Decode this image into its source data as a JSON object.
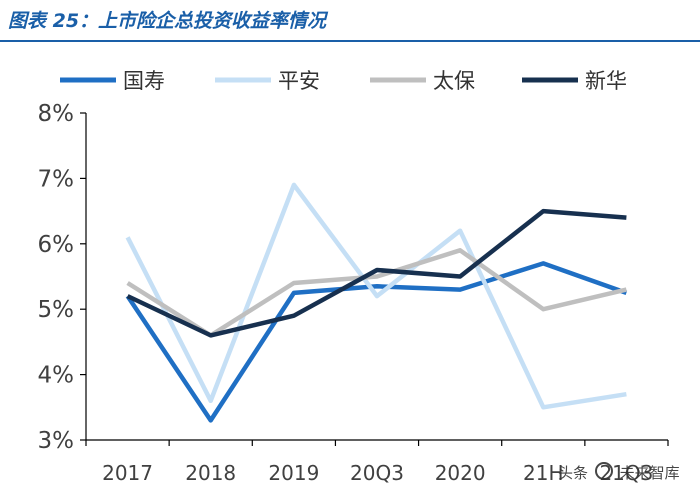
{
  "header": {
    "title": "图表 25：上市险企总投资收益率情况"
  },
  "watermark": {
    "prefix": "头条",
    "name": "未来智库"
  },
  "chart_data": {
    "type": "line",
    "title": "图表 25：上市险企总投资收益率情况",
    "xlabel": "",
    "ylabel": "",
    "categories": [
      "2017",
      "2018",
      "2019",
      "20Q3",
      "2020",
      "21H",
      "21Q3"
    ],
    "ylim": [
      3,
      8
    ],
    "yticks": [
      3,
      4,
      5,
      6,
      7,
      8
    ],
    "ytick_labels": [
      "3%",
      "4%",
      "5%",
      "6%",
      "7%",
      "8%"
    ],
    "legend_position": "top",
    "series": [
      {
        "name": "国寿",
        "color": "#1f6fc4",
        "values": [
          5.2,
          3.3,
          5.25,
          5.35,
          5.3,
          5.7,
          5.25
        ]
      },
      {
        "name": "平安",
        "color": "#c5dff5",
        "values": [
          6.1,
          3.6,
          6.9,
          5.2,
          6.2,
          3.5,
          3.7
        ]
      },
      {
        "name": "太保",
        "color": "#bfbfbf",
        "values": [
          5.4,
          4.6,
          5.4,
          5.5,
          5.9,
          5.0,
          5.3
        ]
      },
      {
        "name": "新华",
        "color": "#17304f",
        "values": [
          5.2,
          4.6,
          4.9,
          5.6,
          5.5,
          6.5,
          6.4
        ]
      }
    ]
  }
}
